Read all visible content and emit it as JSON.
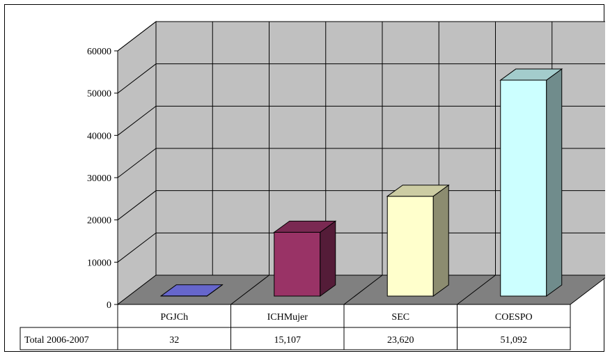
{
  "chart_data": {
    "type": "bar",
    "title": "",
    "xlabel": "",
    "ylabel": "",
    "ylim": [
      0,
      60000
    ],
    "y_ticks": [
      0,
      10000,
      20000,
      30000,
      40000,
      50000,
      60000
    ],
    "categories": [
      "PGJCh",
      "ICHMujer",
      "SEC",
      "COESPO"
    ],
    "series": [
      {
        "name": "Total 2006-2007",
        "values": [
          32,
          15107,
          23620,
          51092
        ]
      }
    ],
    "table_values": [
      "32",
      "15,107",
      "23,620",
      "51,092"
    ],
    "style": {
      "walls_color": "#c0c0c0",
      "floor_color": "#808080",
      "bar_colors": [
        "#8080ff",
        "#993366",
        "#ffffcc",
        "#ccffff"
      ]
    },
    "grid": true,
    "data_table": true
  }
}
